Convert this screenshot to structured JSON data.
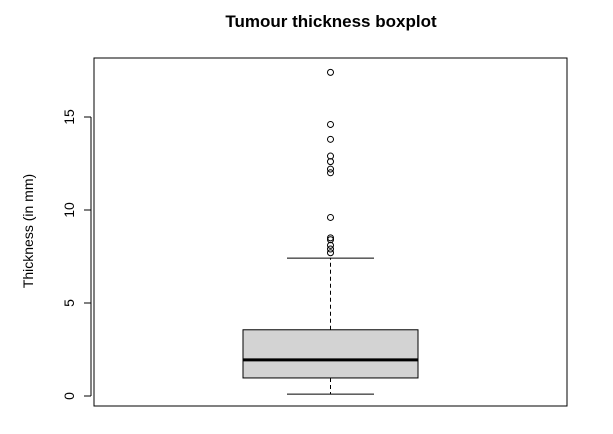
{
  "chart_data": {
    "type": "boxplot",
    "title": "Tumour thickness boxplot",
    "xlabel": "",
    "ylabel": "Thickness (in mm)",
    "ylim": [
      -0.5,
      18.0
    ],
    "y_ticks": [
      0,
      5,
      10,
      15
    ],
    "y_tick_labels": [
      "0",
      "5",
      "10",
      "15"
    ],
    "grid": false,
    "box": {
      "min": 0.1,
      "q1": 0.97,
      "median": 1.94,
      "q3": 3.56,
      "upper_whisker": 7.41
    },
    "outliers": [
      7.7,
      7.9,
      8.1,
      8.4,
      8.5,
      9.6,
      12.0,
      12.2,
      12.6,
      12.9,
      13.8,
      14.6,
      17.4
    ],
    "colors": {
      "box_fill": "#d3d3d3",
      "stroke": "#000000",
      "background": "#ffffff"
    }
  }
}
